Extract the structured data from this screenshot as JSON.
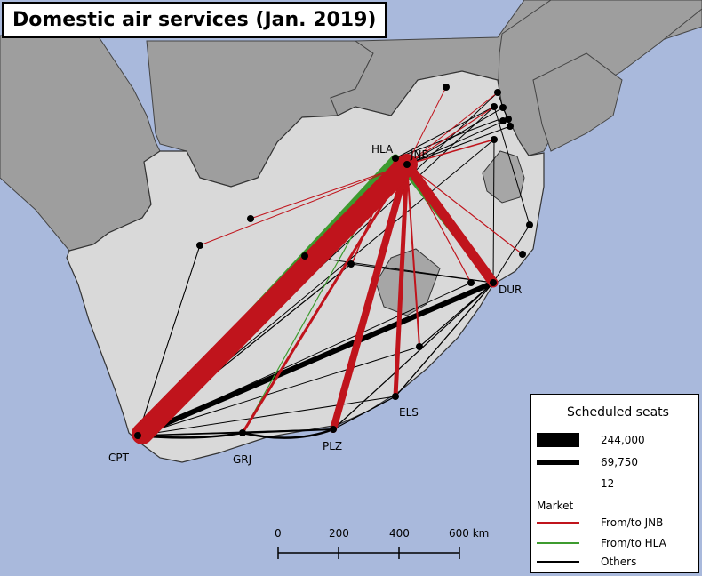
{
  "title": "Domestic air services (Jan. 2019)",
  "cities": [
    {
      "code": "HLA"
    },
    {
      "code": "JNB"
    },
    {
      "code": "DUR"
    },
    {
      "code": "ELS"
    },
    {
      "code": "PLZ"
    },
    {
      "code": "GRJ"
    },
    {
      "code": "CPT"
    }
  ],
  "legend": {
    "title": "Scheduled seats",
    "sizes": [
      {
        "label": "244,000"
      },
      {
        "label": "69,750"
      },
      {
        "label": "12"
      }
    ],
    "market_title": "Market",
    "markets": [
      {
        "label": "From/to JNB",
        "color": "#c0141c"
      },
      {
        "label": "From/to HLA",
        "color": "#3d9b2f"
      },
      {
        "label": "Others",
        "color": "#000000"
      }
    ]
  },
  "scale_bar": {
    "ticks": [
      "0",
      "200",
      "400",
      "600 km"
    ]
  },
  "colors": {
    "sea": "#a9b9dc",
    "south_africa": "#d9d9d9",
    "neighbours": "#9e9e9e",
    "lesotho_eswatini": "#a6a6a6"
  }
}
